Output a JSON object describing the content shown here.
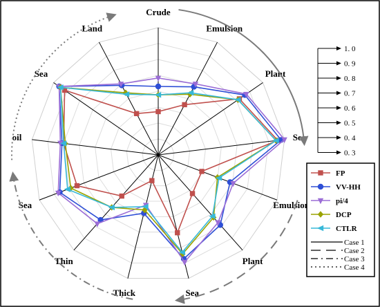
{
  "chart_data": {
    "type": "radar",
    "categories": [
      "Crude",
      "Emulsion",
      "Plant",
      "Sea",
      "Emulsion",
      "Plant",
      "Sea",
      "Thick",
      "Thin",
      "Sea",
      "oil",
      "Sea",
      "Land"
    ],
    "rlim": [
      0.3,
      1.0
    ],
    "scale_ticks": [
      "1. 0",
      "0. 9",
      "0. 8",
      "0. 7",
      "0. 6",
      "0. 5",
      "0. 4",
      "0. 3"
    ],
    "grid": true,
    "legend_position": "right",
    "series": [
      {
        "name": "FP",
        "color": "#c0504d",
        "marker": "square",
        "values": [
          0.5,
          0.58,
          0.83,
          0.96,
          0.52,
          0.55,
          0.72,
          0.4,
          0.57,
          0.76,
          0.81,
          0.92,
          0.52
        ]
      },
      {
        "name": "VV-HH",
        "color": "#2e4fd6",
        "marker": "circle",
        "values": [
          0.65,
          0.7,
          0.87,
          0.98,
          0.7,
          0.8,
          0.88,
          0.6,
          0.76,
          0.87,
          0.82,
          0.96,
          0.71
        ]
      },
      {
        "name": "pi/4",
        "color": "#9b6dd6",
        "marker": "triangle-down",
        "values": [
          0.7,
          0.72,
          0.88,
          1.0,
          0.72,
          0.78,
          0.9,
          0.55,
          0.79,
          0.88,
          0.83,
          0.96,
          0.72
        ]
      },
      {
        "name": "DCP",
        "color": "#9aa300",
        "marker": "diamond",
        "values": [
          0.6,
          0.65,
          0.82,
          0.95,
          0.62,
          0.74,
          0.85,
          0.58,
          0.66,
          0.8,
          0.8,
          0.95,
          0.66
        ]
      },
      {
        "name": "CTLR",
        "color": "#37b8d8",
        "marker": "triangle-left",
        "values": [
          0.6,
          0.66,
          0.82,
          0.95,
          0.63,
          0.73,
          0.84,
          0.56,
          0.66,
          0.82,
          0.81,
          0.95,
          0.65
        ]
      }
    ],
    "cases": [
      {
        "label": "Case 1",
        "dash": "solid"
      },
      {
        "label": "Case 2",
        "dash": "long-dash"
      },
      {
        "label": "Case 3",
        "dash": "dash-dot"
      },
      {
        "label": "Case 4",
        "dash": "dot"
      }
    ]
  }
}
